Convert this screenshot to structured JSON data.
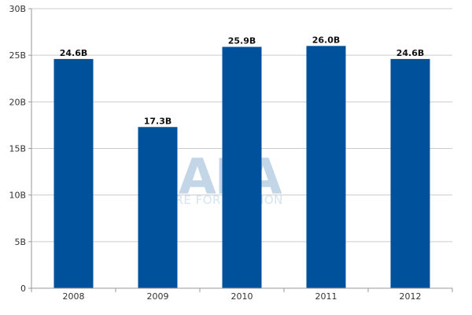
{
  "chart_data": {
    "type": "bar",
    "title": "",
    "xlabel": "",
    "ylabel": "",
    "categories": [
      "2008",
      "2009",
      "2010",
      "2011",
      "2012"
    ],
    "values": [
      24.6,
      17.3,
      25.9,
      26.0,
      24.6
    ],
    "value_labels": [
      "24.6B",
      "17.3B",
      "25.9B",
      "26.0B",
      "24.6B"
    ],
    "ylim": [
      0,
      30
    ],
    "y_ticks": [
      0,
      5,
      10,
      15,
      20,
      25,
      30
    ],
    "y_tick_labels": [
      "0",
      "5B",
      "10B",
      "15B",
      "20B",
      "25B",
      "30B"
    ],
    "grid": true,
    "legend": "none",
    "bar_color": "#00519c",
    "grid_color": "#cccccc"
  },
  "watermark": {
    "logo_text": "CAPA",
    "tagline": "CENTRE FOR AVIATION"
  }
}
